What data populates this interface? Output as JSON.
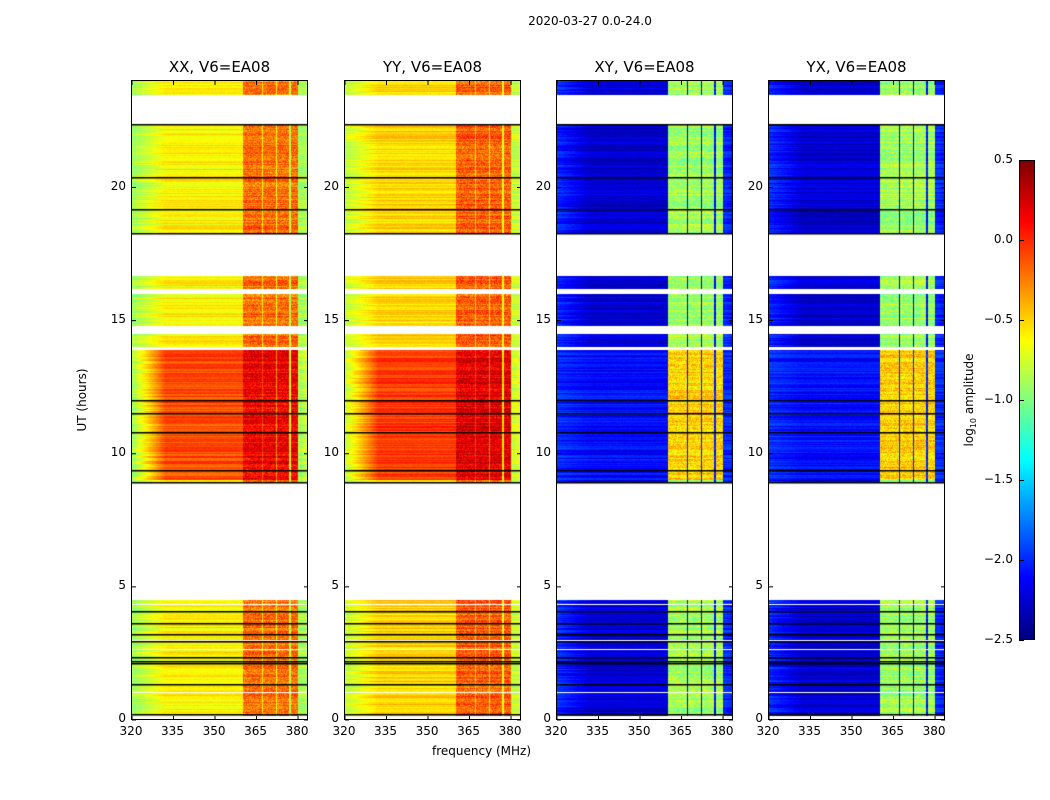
{
  "chart_data": {
    "type": "heatmap",
    "title": "2020-03-27 0.0-24.0",
    "xlabel": "frequency (MHz)",
    "ylabel": "UT (hours)",
    "xlim": [
      320,
      383.6
    ],
    "ylim": [
      0,
      24
    ],
    "xticks": [
      320,
      335,
      350,
      365,
      380
    ],
    "yticks": [
      0,
      5,
      10,
      15,
      20
    ],
    "colormap": "jet",
    "colorbar": {
      "label": "log10 amplitude",
      "label_main": "log",
      "label_sub": "10",
      "label_rest": " amplitude",
      "range": [
        -2.5,
        0.5
      ],
      "ticks": [
        "0.5",
        "0.0",
        "−0.5",
        "−1.0",
        "−1.5",
        "−2.0",
        "−2.5"
      ],
      "tick_values": [
        0.5,
        0.0,
        -0.5,
        -1.0,
        -1.5,
        -2.0,
        -2.5
      ]
    },
    "data_segments_hours": [
      [
        0.15,
        4.5
      ],
      [
        8.9,
        16.7
      ],
      [
        18.3,
        22.4
      ],
      [
        23.5,
        24
      ]
    ],
    "white_gaps_hours": [
      [
        14.5,
        14.8
      ],
      [
        16.0,
        16.2
      ],
      [
        13.9,
        14.0
      ],
      [
        1.0,
        1.05
      ],
      [
        2.6,
        2.65
      ],
      [
        2.95,
        3.0
      ],
      [
        4.3,
        4.35
      ]
    ],
    "black_lines_hours": [
      0.2,
      1.3,
      2.1,
      2.2,
      2.35,
      2.95,
      3.2,
      3.6,
      4.05,
      9.35,
      10.8,
      11.5,
      12.0,
      19.2,
      20.4,
      22.4,
      18.3,
      8.9
    ],
    "rfi_bands_mhz": [
      [
        360.3,
        367.0
      ],
      [
        367.5,
        372.0
      ],
      [
        372.5,
        377.0
      ],
      [
        377.5,
        380.0
      ]
    ],
    "panels": [
      {
        "title": "XX, V6=EA08",
        "edge_value": -0.9,
        "mid_value": -0.6,
        "high_period_value": -0.1,
        "high_period_hours": [
          9,
          14
        ],
        "band_value": -0.2,
        "band_high_value": 0.15
      },
      {
        "title": "YY, V6=EA08",
        "edge_value": -0.8,
        "mid_value": -0.5,
        "high_period_value": -0.05,
        "high_period_hours": [
          9,
          14
        ],
        "band_value": -0.15,
        "band_high_value": 0.2
      },
      {
        "title": "XY, V6=EA08",
        "edge_value": -2.0,
        "mid_value": -2.25,
        "high_period_value": -2.1,
        "high_period_hours": [
          9,
          14
        ],
        "band_value": -0.9,
        "band_high_value": -0.5
      },
      {
        "title": "YX, V6=EA08",
        "edge_value": -2.0,
        "mid_value": -2.25,
        "high_period_value": -2.1,
        "high_period_hours": [
          9,
          14
        ],
        "band_value": -0.9,
        "band_high_value": -0.5
      }
    ]
  }
}
